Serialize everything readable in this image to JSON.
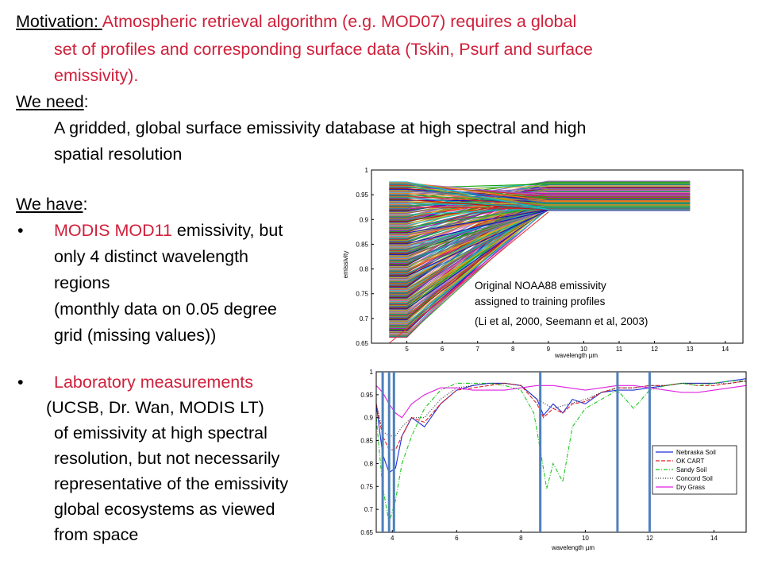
{
  "motivation": {
    "label": "Motivation: ",
    "line1": "Atmospheric retrieval algorithm (e.g. MOD07) requires a global",
    "line2": "set of profiles and corresponding surface  data (Tskin, Psurf and surface",
    "line3": "emissivity)."
  },
  "need": {
    "label": "We need",
    "colon": ":",
    "line1": "A gridded, global surface emissivity database at high spectral and high",
    "line2": "spatial resolution"
  },
  "have": {
    "label": "We have",
    "colon": ":",
    "bullet_symbol": "•",
    "item1": {
      "title": "MODIS MOD11",
      "rest": " emissivity, but",
      "line2": "only 4 distinct wavelength",
      "line3": "regions",
      "line4": "(monthly data on 0.05 degree",
      "line5": "grid (missing values))"
    },
    "item2": {
      "title": "Laboratory measurements",
      "line2": "(UCSB, Dr. Wan, MODIS LT)",
      "line3": "of emissivity at high spectral",
      "line4": "resolution, but not necessarily",
      "line5": "representative of the emissivity",
      "line6": "global ecosystems as viewed",
      "line7": "from space"
    }
  },
  "colors": {
    "accent": "#d0203b",
    "vertical_bars": "#4f81bd"
  },
  "chart_data": [
    {
      "type": "line",
      "title": "",
      "xlabel": "wavelength µm",
      "ylabel": "emissivity",
      "xlim": [
        4,
        14.5
      ],
      "ylim": [
        0.65,
        1
      ],
      "xticks": [
        "5",
        "6",
        "7",
        "8",
        "9",
        "10",
        "11",
        "12",
        "13",
        "14"
      ],
      "yticks": [
        "0.65",
        "0.7",
        "0.75",
        "0.8",
        "0.85",
        "0.9",
        "0.95",
        "1"
      ],
      "x": [
        4.5,
        5,
        9,
        13
      ],
      "series_description_count": "many profiles",
      "annotation": [
        "Original NOAA88 emissivity",
        "assigned to training profiles",
        "(Li et al, 2000, Seemann et al, 2003)"
      ]
    },
    {
      "type": "line",
      "title": "",
      "xlabel": "wavelength µm",
      "ylabel": "emissivity",
      "xlim": [
        3.5,
        15
      ],
      "ylim": [
        0.65,
        1
      ],
      "xticks": [
        "4",
        "6",
        "8",
        "10",
        "12",
        "14"
      ],
      "yticks": [
        "0.65",
        "0.7",
        "0.75",
        "0.8",
        "0.85",
        "0.9",
        "0.95",
        "1"
      ],
      "legend_position": "lower-right",
      "vertical_bars_x": [
        3.7,
        3.9,
        4.05,
        8.6,
        11.0,
        12.0
      ],
      "series": [
        {
          "name": "Nebraska Soil",
          "color": "#1f2fd8",
          "x": [
            3.5,
            3.7,
            3.9,
            4.1,
            4.3,
            4.6,
            5,
            5.5,
            6,
            6.5,
            7,
            7.5,
            8,
            8.5,
            8.7,
            9,
            9.3,
            9.6,
            10,
            10.5,
            11,
            11.5,
            12,
            12.5,
            13,
            13.5,
            14,
            14.5,
            15
          ],
          "y": [
            0.93,
            0.82,
            0.78,
            0.79,
            0.86,
            0.9,
            0.88,
            0.93,
            0.96,
            0.97,
            0.975,
            0.975,
            0.97,
            0.94,
            0.905,
            0.93,
            0.91,
            0.94,
            0.93,
            0.955,
            0.96,
            0.96,
            0.965,
            0.97,
            0.975,
            0.975,
            0.975,
            0.98,
            0.985
          ]
        },
        {
          "name": "OK CART",
          "color": "#e0202a",
          "x": [
            3.5,
            3.7,
            3.9,
            4.1,
            4.3,
            4.6,
            5,
            5.5,
            6,
            6.5,
            7,
            7.5,
            8,
            8.5,
            8.7,
            9,
            9.3,
            9.6,
            10,
            10.5,
            11,
            11.5,
            12,
            12.5,
            13,
            13.5,
            14,
            14.5,
            15
          ],
          "y": [
            0.93,
            0.86,
            0.83,
            0.83,
            0.86,
            0.9,
            0.89,
            0.93,
            0.96,
            0.965,
            0.97,
            0.975,
            0.97,
            0.93,
            0.9,
            0.92,
            0.91,
            0.93,
            0.935,
            0.955,
            0.965,
            0.965,
            0.97,
            0.97,
            0.975,
            0.97,
            0.97,
            0.975,
            0.98
          ]
        },
        {
          "name": "Sandy Soil",
          "color": "#1ec81e",
          "x": [
            3.5,
            3.7,
            3.9,
            4.1,
            4.3,
            4.6,
            5,
            5.5,
            6,
            6.5,
            7,
            7.5,
            8,
            8.4,
            8.6,
            8.8,
            9.0,
            9.3,
            9.6,
            10,
            10.5,
            11,
            11.5,
            12,
            12.5,
            13,
            13.5,
            14,
            14.5,
            15
          ],
          "y": [
            0.9,
            0.75,
            0.67,
            0.72,
            0.8,
            0.86,
            0.92,
            0.96,
            0.975,
            0.975,
            0.975,
            0.97,
            0.96,
            0.91,
            0.83,
            0.745,
            0.8,
            0.76,
            0.88,
            0.92,
            0.94,
            0.96,
            0.92,
            0.96,
            0.97,
            0.975,
            0.97,
            0.975,
            0.98,
            0.98
          ]
        },
        {
          "name": "Concord Soil",
          "color": "#333333",
          "x": [
            3.5,
            3.7,
            3.9,
            4.1,
            4.3,
            4.6,
            5,
            5.5,
            6,
            6.5,
            7,
            7.5,
            8,
            8.5,
            9,
            9.5,
            10,
            10.5,
            11,
            11.5,
            12,
            12.5,
            13,
            13.5,
            14,
            14.5,
            15
          ],
          "y": [
            0.93,
            0.87,
            0.86,
            0.86,
            0.88,
            0.9,
            0.9,
            0.94,
            0.965,
            0.97,
            0.975,
            0.975,
            0.97,
            0.94,
            0.92,
            0.93,
            0.94,
            0.955,
            0.965,
            0.965,
            0.97,
            0.97,
            0.975,
            0.975,
            0.975,
            0.975,
            0.98
          ]
        },
        {
          "name": "Dry Grass",
          "color": "#e020e0",
          "x": [
            3.5,
            3.7,
            3.9,
            4.1,
            4.3,
            4.6,
            5,
            5.5,
            6,
            6.5,
            7,
            7.5,
            8,
            8.5,
            9,
            9.5,
            10,
            10.5,
            11,
            11.5,
            12,
            12.5,
            13,
            13.5,
            14,
            14.5,
            15
          ],
          "y": [
            0.97,
            0.955,
            0.93,
            0.91,
            0.9,
            0.93,
            0.95,
            0.965,
            0.965,
            0.96,
            0.96,
            0.96,
            0.965,
            0.97,
            0.97,
            0.965,
            0.96,
            0.965,
            0.97,
            0.97,
            0.965,
            0.96,
            0.955,
            0.955,
            0.96,
            0.965,
            0.97
          ]
        }
      ]
    }
  ]
}
